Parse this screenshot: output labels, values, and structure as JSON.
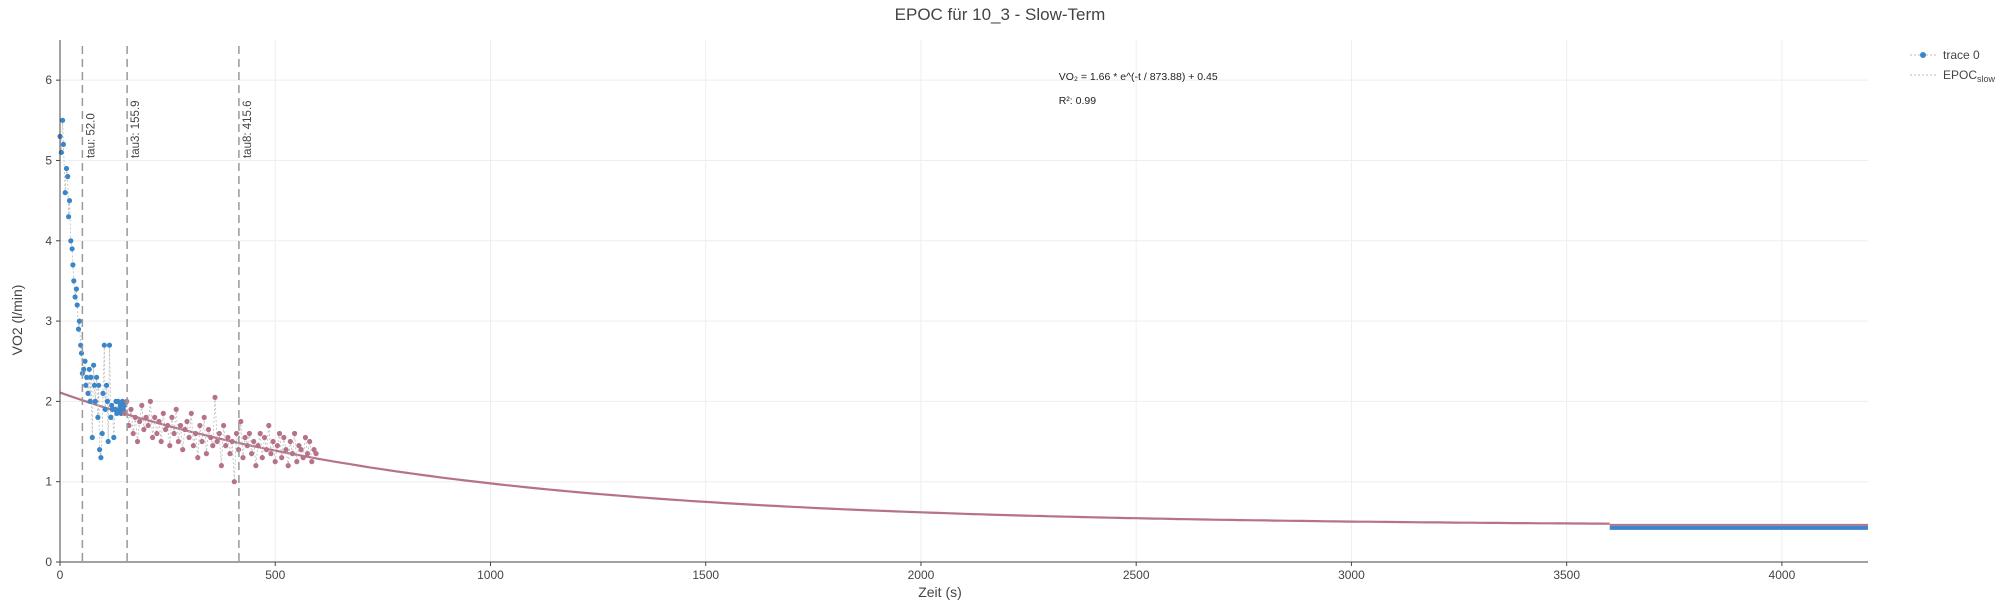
{
  "chart_data": {
    "type": "scatter",
    "title": "EPOC für 10_3 - Slow-Term",
    "xlabel": "Zeit (s)",
    "ylabel": "VO2 (l/min)",
    "xlim": [
      0,
      4200
    ],
    "ylim": [
      0,
      6.5
    ],
    "x_ticks": [
      0,
      500,
      1000,
      1500,
      2000,
      2500,
      3000,
      3500,
      4000
    ],
    "x_tick_labels": [
      "0",
      "500",
      "1000",
      "1500",
      "2000",
      "2500",
      "3000",
      "3500",
      "4000"
    ],
    "y_ticks": [
      0,
      1,
      2,
      3,
      4,
      5,
      6
    ],
    "y_tick_labels": [
      "0",
      "1",
      "2",
      "3",
      "4",
      "5",
      "6"
    ],
    "grid": true,
    "legend_position": "top-right",
    "legend": [
      {
        "label": "trace 0",
        "color": "#3a86c8"
      },
      {
        "label": "EPOC",
        "sub": "slow",
        "color": "#999999"
      }
    ],
    "series": [
      {
        "name": "trace 0",
        "color": "#3a86c8",
        "x": [
          0,
          3,
          6,
          8,
          12,
          15,
          18,
          20,
          22,
          25,
          28,
          30,
          32,
          35,
          38,
          40,
          43,
          45,
          48,
          50,
          52,
          55,
          58,
          60,
          62,
          65,
          68,
          70,
          72,
          75,
          78,
          80,
          82,
          85,
          88,
          90,
          92,
          95,
          98,
          100,
          103,
          105,
          108,
          110,
          112,
          115,
          118,
          120,
          122,
          125,
          128,
          130,
          132,
          135,
          138,
          140,
          142,
          145,
          148,
          150
        ],
        "y": [
          5.3,
          5.1,
          5.5,
          5.2,
          4.6,
          4.9,
          4.8,
          4.3,
          4.5,
          4.0,
          3.9,
          3.7,
          3.5,
          3.3,
          3.4,
          3.2,
          2.9,
          3.0,
          2.7,
          2.6,
          2.35,
          2.4,
          2.5,
          2.2,
          2.3,
          2.1,
          2.4,
          2.0,
          2.3,
          1.55,
          2.45,
          2.2,
          2.0,
          2.3,
          1.8,
          2.2,
          1.4,
          1.3,
          1.6,
          2.1,
          2.7,
          1.9,
          2.2,
          2.0,
          1.5,
          2.7,
          1.8,
          1.95,
          1.9,
          1.55,
          1.9,
          2.0,
          1.85,
          2.0,
          1.9,
          1.95,
          1.85,
          2.0,
          1.9,
          1.95
        ]
      },
      {
        "name": "",
        "color": "#b5728a",
        "x": [
          150,
          155,
          160,
          165,
          170,
          175,
          180,
          185,
          190,
          195,
          200,
          205,
          210,
          215,
          220,
          225,
          230,
          235,
          240,
          245,
          250,
          255,
          260,
          265,
          270,
          275,
          280,
          285,
          290,
          295,
          300,
          305,
          310,
          315,
          320,
          325,
          330,
          335,
          340,
          345,
          350,
          355,
          360,
          365,
          370,
          375,
          380,
          385,
          390,
          395,
          400,
          405,
          410,
          415,
          420,
          425,
          430,
          435,
          440,
          445,
          450,
          455,
          460,
          465,
          470,
          475,
          480,
          485,
          490,
          495,
          500,
          505,
          510,
          515,
          520,
          525,
          530,
          535,
          540,
          545,
          550,
          555,
          560,
          565,
          570,
          575,
          580,
          585,
          590,
          595
        ],
        "y": [
          1.85,
          2.0,
          1.7,
          1.9,
          1.6,
          1.8,
          1.5,
          1.75,
          1.95,
          1.65,
          1.8,
          1.7,
          2.0,
          1.55,
          1.8,
          1.6,
          1.75,
          1.5,
          1.85,
          1.65,
          1.7,
          1.45,
          1.8,
          1.6,
          1.9,
          1.5,
          1.7,
          1.4,
          1.65,
          1.75,
          1.55,
          1.85,
          1.45,
          1.6,
          1.3,
          1.7,
          1.5,
          1.8,
          1.35,
          1.65,
          1.55,
          1.45,
          2.05,
          1.5,
          1.6,
          1.2,
          1.7,
          1.45,
          1.55,
          1.35,
          1.5,
          1.0,
          1.6,
          1.4,
          1.75,
          1.3,
          1.55,
          1.45,
          1.6,
          1.35,
          1.5,
          1.2,
          1.45,
          1.6,
          1.3,
          1.55,
          1.4,
          1.7,
          1.35,
          1.5,
          1.25,
          1.45,
          1.6,
          1.3,
          1.55,
          1.4,
          1.2,
          1.5,
          1.35,
          1.6,
          1.25,
          1.45,
          1.4,
          1.3,
          1.55,
          1.35,
          1.5,
          1.25,
          1.4,
          1.35
        ]
      },
      {
        "name": "",
        "color": "#3a86c8",
        "type": "band",
        "x": [
          3600,
          4200
        ],
        "y": [
          0.45,
          0.45
        ]
      }
    ],
    "fit": {
      "color": "#b5728a",
      "a": 1.66,
      "tau": 873.88,
      "c": 0.45,
      "x_range": [
        0,
        3600
      ]
    },
    "vlines": [
      {
        "x": 52.0,
        "label": "tau: 52.0"
      },
      {
        "x": 155.9,
        "label": "tau3: 155.9"
      },
      {
        "x": 415.6,
        "label": "tau8: 415.6"
      }
    ],
    "annotations": [
      {
        "text": "VO₂ = 1.66 * e^(-t / 873.88) + 0.45",
        "x": 2320,
        "y": 6.0
      },
      {
        "text": "R²: 0.99",
        "x": 2320,
        "y": 5.7
      }
    ]
  }
}
